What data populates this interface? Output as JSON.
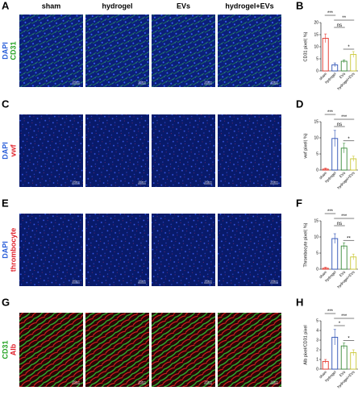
{
  "panel_letters": [
    "A",
    "B",
    "C",
    "D",
    "E",
    "F",
    "G",
    "H"
  ],
  "column_headers": [
    "sham",
    "hydrogel",
    "EVs",
    "hydrogel+EVs"
  ],
  "row_labels": [
    [
      "DAPI",
      "CD31"
    ],
    [
      "DAPI",
      "vwf"
    ],
    [
      "DAPI",
      "thrombocyte"
    ],
    [
      "CD31",
      "Alb"
    ]
  ],
  "scale_bar": "100μm",
  "chart_data": [
    {
      "type": "bar",
      "y_label": "CD31 pixel( %)",
      "categories": [
        "sham",
        "hydrogel",
        "EVs",
        "hydrogel+EVs"
      ],
      "values": [
        13.5,
        2.5,
        4,
        6.8
      ],
      "errors": [
        1.8,
        0.8,
        0.6,
        1.2
      ],
      "colors": [
        "#e53228",
        "#2b4fb5",
        "#3b8c3b",
        "#c9c631"
      ],
      "ylim": [
        0,
        20
      ],
      "yticks": [
        0,
        5,
        10,
        15,
        20
      ],
      "comparisons": [
        {
          "pair": [
            "sham",
            "hydrogel"
          ],
          "label": "***"
        },
        {
          "pair": [
            "hydrogel",
            "EVs"
          ],
          "label": "ns"
        },
        {
          "pair": [
            "hydrogel",
            "hydrogel+EVs"
          ],
          "label": "**"
        },
        {
          "pair": [
            "EVs",
            "hydrogel+EVs"
          ],
          "label": "*"
        }
      ]
    },
    {
      "type": "bar",
      "y_label": "vwf pixel( %)",
      "categories": [
        "sham",
        "hydrogel",
        "EVs",
        "hydrogel+EVs"
      ],
      "values": [
        0.3,
        9.8,
        6.8,
        3.5
      ],
      "errors": [
        0.3,
        2.5,
        1.5,
        0.8
      ],
      "colors": [
        "#e53228",
        "#2b4fb5",
        "#3b8c3b",
        "#c9c631"
      ],
      "ylim": [
        0,
        15
      ],
      "yticks": [
        0,
        5,
        10,
        15
      ],
      "comparisons": [
        {
          "pair": [
            "sham",
            "hydrogel"
          ],
          "label": "***"
        },
        {
          "pair": [
            "hydrogel",
            "EVs"
          ],
          "label": "ns"
        },
        {
          "pair": [
            "hydrogel",
            "hydrogel+EVs"
          ],
          "label": "***"
        },
        {
          "pair": [
            "EVs",
            "hydrogel+EVs"
          ],
          "label": "*"
        }
      ]
    },
    {
      "type": "bar",
      "y_label": "Thrombocyte pixel( %)",
      "categories": [
        "sham",
        "hydrogel",
        "EVs",
        "hydrogel+EVs"
      ],
      "values": [
        0.3,
        9.5,
        7.2,
        3.8
      ],
      "errors": [
        0.3,
        1.5,
        1,
        0.9
      ],
      "colors": [
        "#e53228",
        "#2b4fb5",
        "#3b8c3b",
        "#c9c631"
      ],
      "ylim": [
        0,
        15
      ],
      "yticks": [
        0,
        5,
        10,
        15
      ],
      "comparisons": [
        {
          "pair": [
            "sham",
            "hydrogel"
          ],
          "label": "***"
        },
        {
          "pair": [
            "hydrogel",
            "EVs"
          ],
          "label": "ns"
        },
        {
          "pair": [
            "hydrogel",
            "hydrogel+EVs"
          ],
          "label": "***"
        },
        {
          "pair": [
            "EVs",
            "hydrogel+EVs"
          ],
          "label": "**"
        }
      ]
    },
    {
      "type": "bar",
      "y_label": "Alb pixel/CD31 pixel",
      "categories": [
        "sham",
        "hydrogel",
        "EVs",
        "hydrogel+EVs"
      ],
      "values": [
        0.8,
        3.3,
        2.4,
        1.7
      ],
      "errors": [
        0.2,
        0.8,
        0.3,
        0.3
      ],
      "colors": [
        "#e53228",
        "#2b4fb5",
        "#3b8c3b",
        "#c9c631"
      ],
      "ylim": [
        0,
        5
      ],
      "yticks": [
        0,
        1,
        2,
        3,
        4,
        5
      ],
      "comparisons": [
        {
          "pair": [
            "sham",
            "hydrogel"
          ],
          "label": "***"
        },
        {
          "pair": [
            "hydrogel",
            "EVs"
          ],
          "label": "*"
        },
        {
          "pair": [
            "hydrogel",
            "hydrogel+EVs"
          ],
          "label": "***"
        },
        {
          "pair": [
            "EVs",
            "hydrogel+EVs"
          ],
          "label": "*"
        }
      ]
    }
  ]
}
